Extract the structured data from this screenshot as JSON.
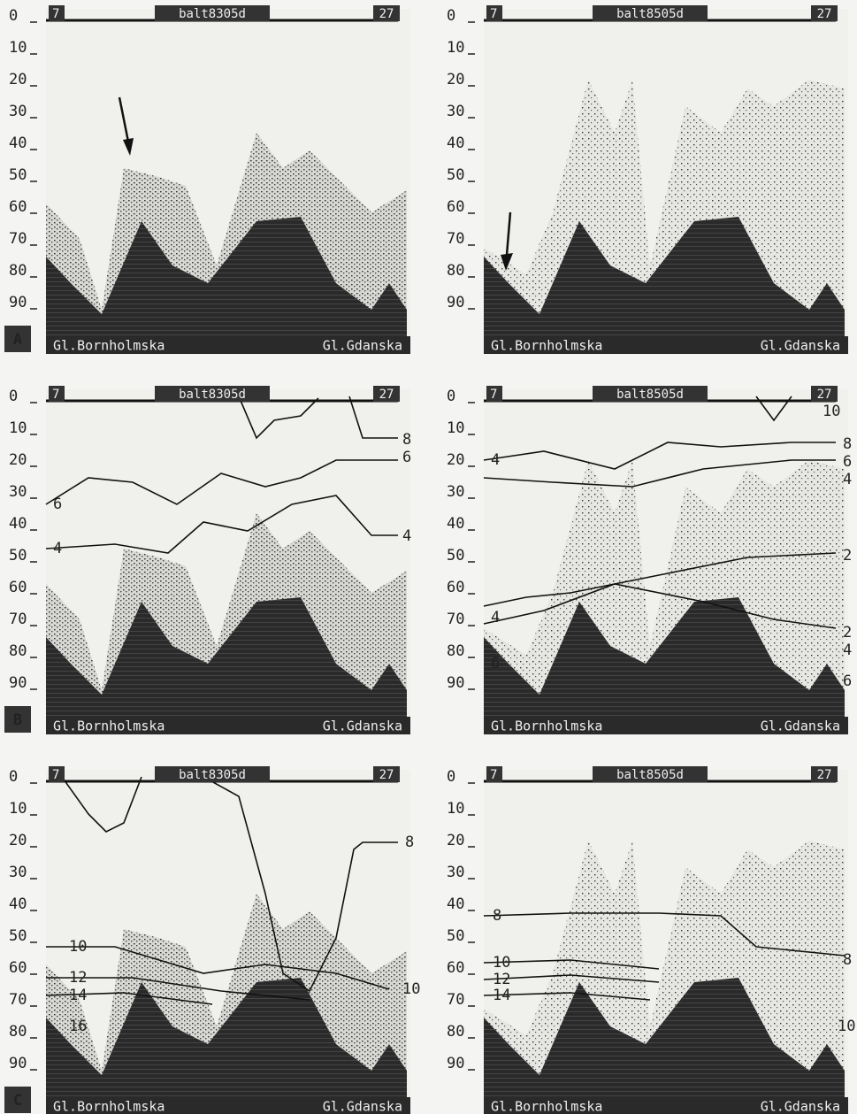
{
  "panels": [
    {
      "letter": "A",
      "header": {
        "left": "7",
        "title": "balt8305d",
        "right": "27"
      },
      "depth_ticks": [
        0,
        10,
        20,
        30,
        40,
        50,
        60,
        70,
        80,
        90
      ],
      "basins": [
        "Gl.Bornholmska",
        "Gl.Gdanska"
      ],
      "contour_labels": []
    },
    {
      "header": {
        "left": "7",
        "title": "balt8505d",
        "right": "27"
      },
      "depth_ticks": [
        0,
        10,
        20,
        30,
        40,
        50,
        60,
        70,
        80,
        90
      ],
      "basins": [
        "Gl.Bornholmska",
        "Gl.Gdanska"
      ],
      "contour_labels": []
    },
    {
      "letter": "B",
      "header": {
        "left": "7",
        "title": "balt8305d",
        "right": "27"
      },
      "depth_ticks": [
        0,
        10,
        20,
        30,
        40,
        50,
        60,
        70,
        80,
        90
      ],
      "basins": [
        "Gl.Bornholmska",
        "Gl.Gdanska"
      ],
      "contour_labels": [
        "8",
        "6",
        "6",
        "4",
        "4"
      ]
    },
    {
      "header": {
        "left": "7",
        "title": "balt8505d",
        "right": "27"
      },
      "depth_ticks": [
        0,
        10,
        20,
        30,
        40,
        50,
        60,
        70,
        80,
        90
      ],
      "basins": [
        "Gl.Bornholmska",
        "Gl.Gdanska"
      ],
      "contour_labels": [
        "10",
        "8",
        "6",
        "4",
        "4",
        "2",
        "2",
        "4",
        "6",
        "4",
        "6"
      ]
    },
    {
      "letter": "C",
      "header": {
        "left": "7",
        "title": "balt8305d",
        "right": "27"
      },
      "depth_ticks": [
        0,
        10,
        20,
        30,
        40,
        50,
        60,
        70,
        80,
        90
      ],
      "basins": [
        "Gl.Bornholmska",
        "Gl.Gdanska"
      ],
      "contour_labels": [
        "8",
        "10",
        "12",
        "14",
        "16",
        "10"
      ]
    },
    {
      "header": {
        "left": "7",
        "title": "balt8505d",
        "right": "27"
      },
      "depth_ticks": [
        0,
        10,
        20,
        30,
        40,
        50,
        60,
        70,
        80,
        90
      ],
      "basins": [
        "Gl.Bornholmska",
        "Gl.Gdanska"
      ],
      "contour_labels": [
        "8",
        "10",
        "12",
        "14",
        "8",
        "10"
      ]
    }
  ]
}
